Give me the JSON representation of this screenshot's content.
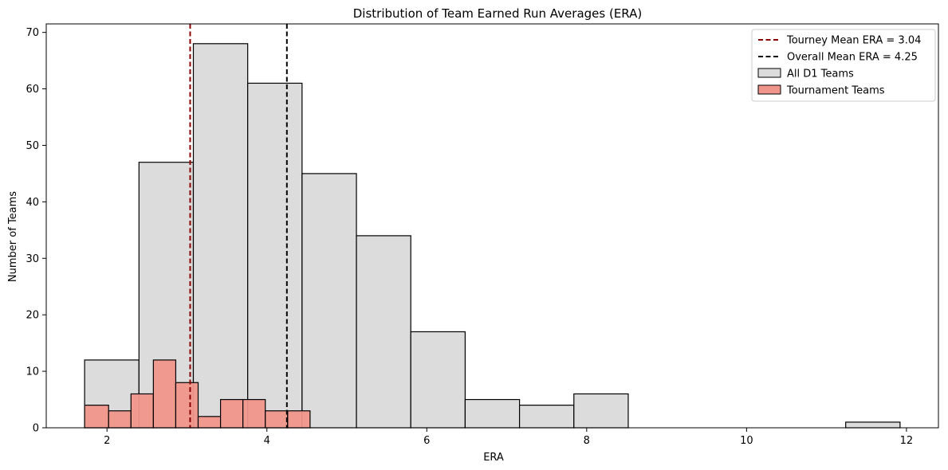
{
  "chart_data": {
    "type": "bar",
    "title": "Distribution of Team Earned Run Averages (ERA)",
    "xlabel": "ERA",
    "ylabel": "Number of Teams",
    "xlim": [
      1.24,
      12.4
    ],
    "ylim": [
      0,
      71.5
    ],
    "xticks": [
      2,
      4,
      6,
      8,
      10,
      12
    ],
    "yticks": [
      0,
      10,
      20,
      30,
      40,
      50,
      60,
      70
    ],
    "grid": false,
    "legend_position": "top-right",
    "series": [
      {
        "name": "All D1 Teams",
        "color": "#dcdcdc",
        "bins": [
          {
            "x0": 1.72,
            "x1": 2.4,
            "count": 12
          },
          {
            "x0": 2.4,
            "x1": 3.08,
            "count": 47
          },
          {
            "x0": 3.08,
            "x1": 3.76,
            "count": 68
          },
          {
            "x0": 3.76,
            "x1": 4.44,
            "count": 61
          },
          {
            "x0": 4.44,
            "x1": 5.12,
            "count": 45
          },
          {
            "x0": 5.12,
            "x1": 5.8,
            "count": 34
          },
          {
            "x0": 5.8,
            "x1": 6.48,
            "count": 17
          },
          {
            "x0": 6.48,
            "x1": 7.16,
            "count": 5
          },
          {
            "x0": 7.16,
            "x1": 7.84,
            "count": 4
          },
          {
            "x0": 7.84,
            "x1": 8.52,
            "count": 6
          },
          {
            "x0": 8.52,
            "x1": 9.2,
            "count": 0
          },
          {
            "x0": 9.2,
            "x1": 9.88,
            "count": 0
          },
          {
            "x0": 9.88,
            "x1": 10.56,
            "count": 0
          },
          {
            "x0": 10.56,
            "x1": 11.24,
            "count": 0
          },
          {
            "x0": 11.24,
            "x1": 11.92,
            "count": 1
          }
        ]
      },
      {
        "name": "Tournament Teams",
        "color": "#f0958a",
        "bins": [
          {
            "x0": 1.72,
            "x1": 2.02,
            "count": 4
          },
          {
            "x0": 2.02,
            "x1": 2.3,
            "count": 3
          },
          {
            "x0": 2.3,
            "x1": 2.58,
            "count": 6
          },
          {
            "x0": 2.58,
            "x1": 2.86,
            "count": 12
          },
          {
            "x0": 2.86,
            "x1": 3.14,
            "count": 8
          },
          {
            "x0": 3.14,
            "x1": 3.42,
            "count": 2
          },
          {
            "x0": 3.42,
            "x1": 3.7,
            "count": 5
          },
          {
            "x0": 3.7,
            "x1": 3.98,
            "count": 5
          },
          {
            "x0": 3.98,
            "x1": 4.26,
            "count": 3
          },
          {
            "x0": 4.26,
            "x1": 4.54,
            "count": 3
          }
        ]
      }
    ],
    "reference_lines": [
      {
        "label": "Tourney Mean ERA = 3.04",
        "x": 3.04,
        "color": "#8b0000",
        "style": "dashed"
      },
      {
        "label": "Overall Mean ERA = 4.25",
        "x": 4.25,
        "color": "#000000",
        "style": "dashed"
      }
    ],
    "legend": [
      {
        "label": "Tourney Mean ERA = 3.04",
        "kind": "line",
        "color": "#8b0000"
      },
      {
        "label": "Overall Mean ERA = 4.25",
        "kind": "line",
        "color": "#000000"
      },
      {
        "label": "All D1 Teams",
        "kind": "patch",
        "color": "#dcdcdc"
      },
      {
        "label": "Tournament Teams",
        "kind": "patch",
        "color": "#f0958a"
      }
    ]
  }
}
